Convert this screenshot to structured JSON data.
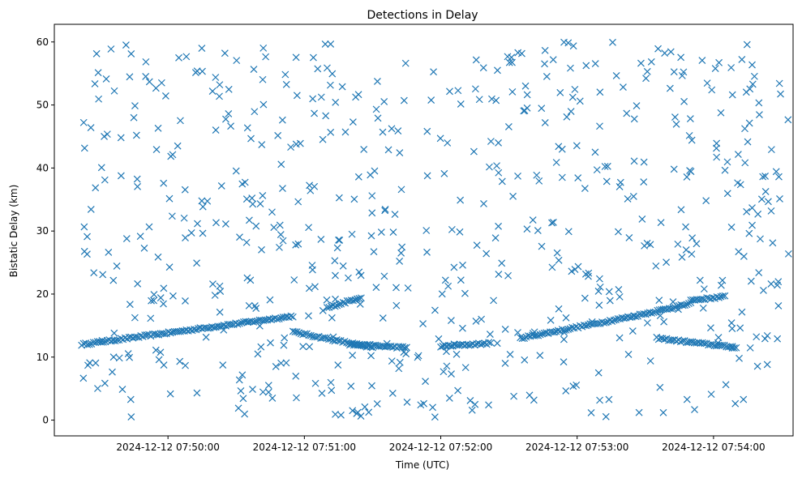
{
  "chart_data": {
    "type": "scatter",
    "title": "Detections in Delay",
    "xlabel": "Time (UTC)",
    "ylabel": "Bistatic Delay (km)",
    "marker": "x",
    "color": "#1f77b4",
    "grid": false,
    "legend": null,
    "x_tick_labels": [
      "2024-12-12 07:50:00",
      "2024-12-12 07:51:00",
      "2024-12-12 07:52:00",
      "2024-12-12 07:53:00",
      "2024-12-12 07:54:00"
    ],
    "y_ticks": [
      0,
      10,
      20,
      30,
      40,
      50,
      60
    ],
    "xlim": [
      "2024-12-12 07:49:10",
      "2024-12-12 07:54:35"
    ],
    "ylim": [
      -2.5,
      62.8
    ],
    "tracks": [
      {
        "x_start": "2024-12-12 07:49:22",
        "x_end": "2024-12-12 07:50:55",
        "y_start": 12.0,
        "y_end": 16.5
      },
      {
        "x_start": "2024-12-12 07:50:55",
        "x_end": "2024-12-12 07:51:30",
        "y_start": 14.0,
        "y_end": 11.5
      },
      {
        "x_start": "2024-12-12 07:51:10",
        "x_end": "2024-12-12 07:51:25",
        "y_start": 17.8,
        "y_end": 19.5
      },
      {
        "x_start": "2024-12-12 07:51:20",
        "x_end": "2024-12-12 07:51:45",
        "y_start": 12.0,
        "y_end": 11.5
      },
      {
        "x_start": "2024-12-12 07:52:00",
        "x_end": "2024-12-12 07:52:22",
        "y_start": 11.7,
        "y_end": 12.2
      },
      {
        "x_start": "2024-12-12 07:52:35",
        "x_end": "2024-12-12 07:53:25",
        "y_start": 13.0,
        "y_end": 16.5
      },
      {
        "x_start": "2024-12-12 07:53:25",
        "x_end": "2024-12-12 07:53:50",
        "y_start": 16.5,
        "y_end": 18.5
      },
      {
        "x_start": "2024-12-12 07:53:35",
        "x_end": "2024-12-12 07:54:10",
        "y_start": 13.0,
        "y_end": 11.5
      },
      {
        "x_start": "2024-12-12 07:53:50",
        "x_end": "2024-12-12 07:54:05",
        "y_start": 19.0,
        "y_end": 19.6
      }
    ],
    "clutter_points": 640,
    "clutter_y_range": [
      0.5,
      60
    ],
    "clutter_x_range": [
      "2024-12-12 07:49:22",
      "2024-12-12 07:54:33"
    ]
  }
}
